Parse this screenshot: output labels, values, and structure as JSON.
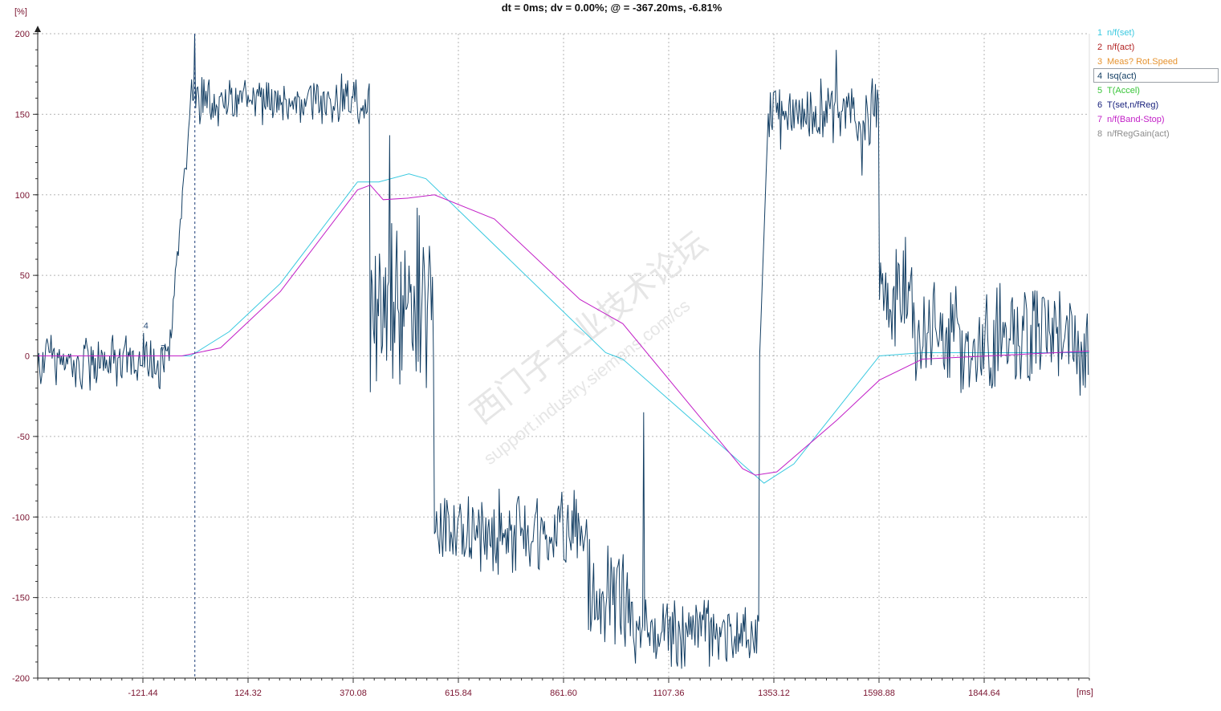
{
  "header": {
    "status_text": "dt = 0ms; dv = 0.00%; @ = -367.20ms, -6.81%"
  },
  "chart_data": {
    "type": "line",
    "title": "dt = 0ms; dv = 0.00%; @ = -367.20ms, -6.81%",
    "ylabel_unit": "[%]",
    "xlabel_unit": "[ms]",
    "y_ticks": [
      200,
      150,
      100,
      50,
      0,
      -50,
      -100,
      -150,
      -200
    ],
    "x_ticks": [
      "-121.44",
      "124.32",
      "370.08",
      "615.84",
      "861.60",
      "1107.36",
      "1353.12",
      "1598.88",
      "1844.64"
    ],
    "xlim": [
      -367.2,
      2090.4
    ],
    "ylim": [
      -200,
      200
    ],
    "grid": true,
    "cursor_x": 0,
    "legend_position": "right",
    "series": [
      {
        "index": "1",
        "name": "n/f(set)",
        "color": "#39c9e0",
        "x": [
          -367.2,
          -10,
          80,
          200,
          380,
          430,
          500,
          540,
          960,
          1000,
          1330,
          1400,
          1600,
          1700,
          2090.4
        ],
        "y": [
          0,
          0,
          15,
          45,
          108,
          108,
          113,
          110,
          2,
          -2,
          -79,
          -67,
          0,
          2,
          2
        ]
      },
      {
        "index": "2",
        "name": "n/f(act)",
        "color": "#b22222",
        "x": [],
        "y": []
      },
      {
        "index": "3",
        "name": "Meas?  Rot.Speed",
        "color": "#e6932f",
        "x": [],
        "y": []
      },
      {
        "index": "4",
        "name": "Isq(act)",
        "color": "#143f64",
        "segments": [
          {
            "x_start": -367.2,
            "x_end": -60,
            "center": -4,
            "amp": 22
          },
          {
            "x_start": -60,
            "x_end": -10,
            "center": 0,
            "amp": 15,
            "ramp_to": 160
          },
          {
            "x_start": -10,
            "x_end": 410,
            "center": 158,
            "amp": 18
          },
          {
            "x_start": 410,
            "x_end": 560,
            "center": 30,
            "amp": 70
          },
          {
            "x_start": 560,
            "x_end": 920,
            "center": -110,
            "amp": 30
          },
          {
            "x_start": 920,
            "x_end": 1020,
            "center": -150,
            "amp": 40
          },
          {
            "x_start": 1020,
            "x_end": 1320,
            "center": -172,
            "amp": 26
          },
          {
            "x_start": 1320,
            "x_end": 1340,
            "center": 0,
            "amp": 0,
            "ramp_to": 150
          },
          {
            "x_start": 1340,
            "x_end": 1600,
            "center": 150,
            "amp": 25
          },
          {
            "x_start": 1600,
            "x_end": 1680,
            "center": 40,
            "amp": 40
          },
          {
            "x_start": 1680,
            "x_end": 2090.4,
            "center": 10,
            "amp": 40
          }
        ],
        "spikes": [
          {
            "x": 0,
            "y": 200
          },
          {
            "x": 455,
            "y": 137
          },
          {
            "x": 1050,
            "y": -35
          },
          {
            "x": 1500,
            "y": 190
          },
          {
            "x": 1560,
            "y": 112
          }
        ]
      },
      {
        "index": "5",
        "name": "T(Accel)",
        "color": "#38c538",
        "x": [],
        "y": []
      },
      {
        "index": "6",
        "name": "T(set,n/fReg)",
        "color": "#1a237e",
        "x": [],
        "y": []
      },
      {
        "index": "7",
        "name": "n/f(Band-Stop)",
        "color": "#c21fc7",
        "x": [
          -367.2,
          -30,
          60,
          200,
          380,
          410,
          440,
          500,
          560,
          700,
          900,
          1000,
          1280,
          1310,
          1360,
          1500,
          1600,
          1700,
          2090.4
        ],
        "y": [
          0,
          0,
          5,
          40,
          103,
          106,
          97,
          98,
          100,
          85,
          35,
          20,
          -70,
          -74,
          -72,
          -40,
          -15,
          -2,
          3
        ]
      },
      {
        "index": "8",
        "name": "n/fRegGain(act)",
        "color": "#8c8c8c",
        "x": [],
        "y": []
      }
    ],
    "legend_selected": "4",
    "curve_markers": [
      {
        "text": "4",
        "x": -120,
        "y": 17
      },
      {
        "text": "7",
        "x": -80,
        "y": 3
      }
    ]
  },
  "watermark": {
    "text_cn": "西门子工业技术论坛",
    "text_url": "support.industry.siemens.com/cs"
  }
}
